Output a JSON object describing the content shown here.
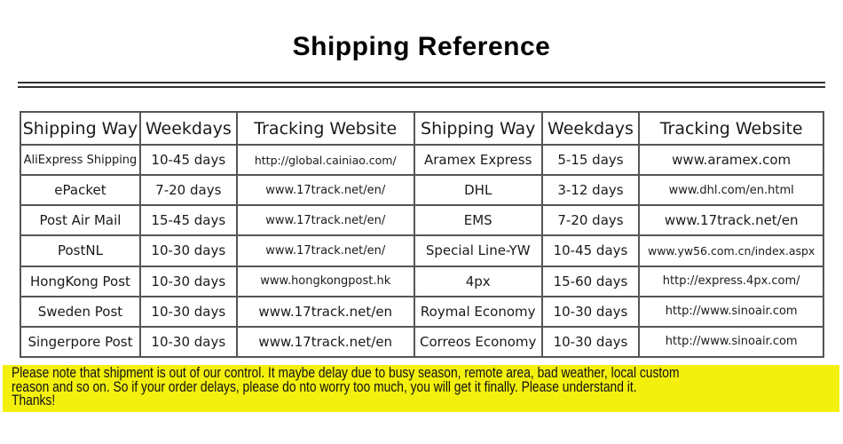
{
  "title": "Shipping Reference",
  "table": {
    "headers": [
      "Shipping Way",
      "Weekdays",
      "Tracking Website",
      "Shipping Way",
      "Weekdays",
      "Tracking Website"
    ],
    "rows": [
      [
        "AliExpress Shipping",
        "10-45 days",
        "http://global.cainiao.com/",
        "Aramex Express",
        "5-15 days",
        "www.aramex.com"
      ],
      [
        "ePacket",
        "7-20 days",
        "www.17track.net/en/",
        "DHL",
        "3-12 days",
        "www.dhl.com/en.html"
      ],
      [
        "Post Air Mail",
        "15-45 days",
        "www.17track.net/en/",
        "EMS",
        "7-20 days",
        "www.17track.net/en"
      ],
      [
        "PostNL",
        "10-30 days",
        "www.17track.net/en/",
        "Special Line-YW",
        "10-45 days",
        "www.yw56.com.cn/index.aspx"
      ],
      [
        "HongKong Post",
        "10-30 days",
        "www.hongkongpost.hk",
        "4px",
        "15-60 days",
        "http://express.4px.com/"
      ],
      [
        "Sweden Post",
        "10-30 days",
        "www.17track.net/en",
        "Roymal Economy",
        "10-30 days",
        "http://www.sinoair.com"
      ],
      [
        "Singerpore Post",
        "10-30 days",
        "www.17track.net/en",
        "Correos Economy",
        "10-30 days",
        "http://www.sinoair.com"
      ]
    ]
  },
  "note": {
    "lines": [
      "Please note that shipment is out of our control. It maybe delay due to busy season, remote area, bad weather, local custom",
      "reason and so on. So if your order delays, please do nto worry too much, you will get it finally. Please understand it.",
      "Thanks!"
    ],
    "background": "#f4f00e"
  }
}
